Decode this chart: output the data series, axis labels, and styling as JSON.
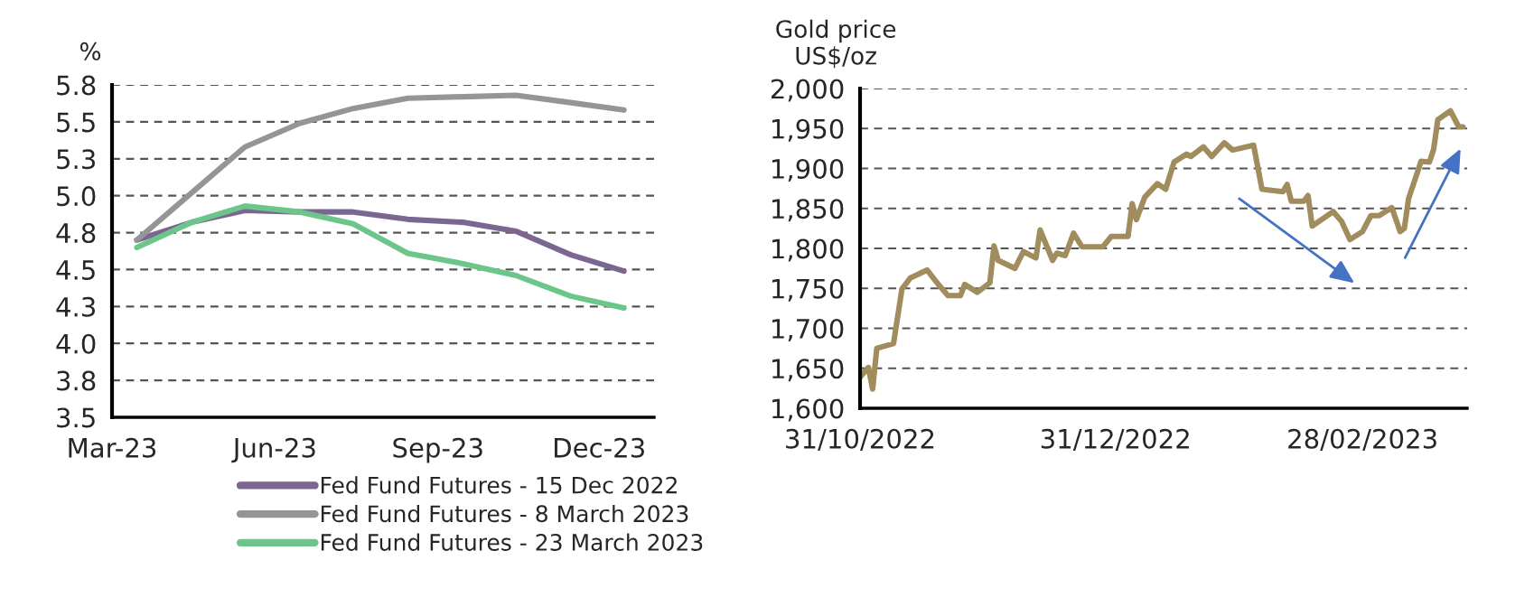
{
  "chart_data": [
    {
      "type": "line",
      "ylabel": "%",
      "x": [
        "2023-03-15",
        "2023-04-15",
        "2023-05-15",
        "2023-06-15",
        "2023-07-15",
        "2023-08-15",
        "2023-09-15",
        "2023-10-15",
        "2023-11-15",
        "2023-12-15"
      ],
      "series": [
        {
          "name": "Fed Fund Futures - 15 Dec 2022",
          "color": "#7a6690",
          "values": [
            4.7,
            4.82,
            4.9,
            4.89,
            4.89,
            4.84,
            4.82,
            4.76,
            4.6,
            4.49
          ]
        },
        {
          "name": "Fed Fund Futures - 8 March 2023",
          "color": "#959595",
          "values": [
            4.7,
            5.02,
            5.33,
            5.49,
            5.59,
            5.66,
            5.67,
            5.68,
            5.63,
            5.58
          ]
        },
        {
          "name": "Fed Fund Futures - 23 March 2023",
          "color": "#6cc68a",
          "values": [
            4.65,
            4.82,
            4.93,
            4.89,
            4.81,
            4.61,
            4.54,
            4.46,
            4.32,
            4.24
          ]
        }
      ],
      "xlim": [
        "2023-03-01",
        "2024-01-01"
      ],
      "xticks": [
        {
          "value": "2023-03-01",
          "label": "Mar-23"
        },
        {
          "value": "2023-06-01",
          "label": "Jun-23"
        },
        {
          "value": "2023-09-01",
          "label": "Sep-23"
        },
        {
          "value": "2023-12-01",
          "label": "Dec-23"
        }
      ],
      "ylim": [
        3.5,
        5.75
      ],
      "yticks": [
        {
          "value": 3.5,
          "label": "3.5"
        },
        {
          "value": 3.75,
          "label": "3.8"
        },
        {
          "value": 4.0,
          "label": "4.0"
        },
        {
          "value": 4.25,
          "label": "4.3"
        },
        {
          "value": 4.5,
          "label": "4.5"
        },
        {
          "value": 4.75,
          "label": "4.8"
        },
        {
          "value": 5.0,
          "label": "5.0"
        },
        {
          "value": 5.25,
          "label": "5.3"
        },
        {
          "value": 5.5,
          "label": "5.5"
        },
        {
          "value": 5.75,
          "label": "5.8"
        }
      ],
      "grid": "y",
      "legend": "bottom"
    },
    {
      "type": "line",
      "ylabel": "Gold price\nUS$/oz",
      "x": [
        "2022-10-31",
        "2022-11-02",
        "2022-11-03",
        "2022-11-04",
        "2022-11-08",
        "2022-11-10",
        "2022-11-12",
        "2022-11-16",
        "2022-11-19",
        "2022-11-21",
        "2022-11-24",
        "2022-11-25",
        "2022-11-28",
        "2022-12-01",
        "2022-12-02",
        "2022-12-03",
        "2022-12-07",
        "2022-12-09",
        "2022-12-12",
        "2022-12-13",
        "2022-12-16",
        "2022-12-17",
        "2022-12-19",
        "2022-12-21",
        "2022-12-23",
        "2022-12-28",
        "2022-12-30",
        "2023-01-03",
        "2023-01-04",
        "2023-01-05",
        "2023-01-07",
        "2023-01-10",
        "2023-01-12",
        "2023-01-14",
        "2023-01-17",
        "2023-01-18",
        "2023-01-21",
        "2023-01-23",
        "2023-01-26",
        "2023-01-28",
        "2023-02-02",
        "2023-02-04",
        "2023-02-09",
        "2023-02-10",
        "2023-02-11",
        "2023-02-14",
        "2023-02-15",
        "2023-02-16",
        "2023-02-21",
        "2023-02-23",
        "2023-02-25",
        "2023-02-28",
        "2023-03-02",
        "2023-03-04",
        "2023-03-07",
        "2023-03-09",
        "2023-03-10",
        "2023-03-11",
        "2023-03-14",
        "2023-03-16",
        "2023-03-17",
        "2023-03-18",
        "2023-03-21",
        "2023-03-23",
        "2023-03-24"
      ],
      "series": [
        {
          "color": "#a08c5c",
          "values": [
            1639,
            1651,
            1624,
            1675,
            1681,
            1749,
            1763,
            1773,
            1753,
            1741,
            1741,
            1755,
            1745,
            1757,
            1803,
            1785,
            1775,
            1796,
            1788,
            1823,
            1785,
            1794,
            1791,
            1819,
            1802,
            1802,
            1815,
            1815,
            1856,
            1836,
            1864,
            1881,
            1874,
            1908,
            1918,
            1915,
            1927,
            1915,
            1932,
            1923,
            1929,
            1874,
            1871,
            1880,
            1859,
            1859,
            1866,
            1828,
            1846,
            1834,
            1811,
            1821,
            1841,
            1841,
            1851,
            1821,
            1825,
            1862,
            1909,
            1908,
            1924,
            1961,
            1972,
            1952,
            1952
          ]
        }
      ],
      "xlim": [
        "2022-10-31",
        "2023-03-25"
      ],
      "xticks": [
        {
          "value": "2022-10-31",
          "label": "31/10/2022"
        },
        {
          "value": "2022-12-31",
          "label": "31/12/2022"
        },
        {
          "value": "2023-02-28",
          "label": "28/02/2023"
        }
      ],
      "ylim": [
        1600,
        2000
      ],
      "yticks": [
        {
          "value": 1600,
          "label": "1,600"
        },
        {
          "value": 1650,
          "label": "1,650"
        },
        {
          "value": 1700,
          "label": "1,700"
        },
        {
          "value": 1750,
          "label": "1,750"
        },
        {
          "value": 1800,
          "label": "1,800"
        },
        {
          "value": 1850,
          "label": "1,850"
        },
        {
          "value": 1900,
          "label": "1,900"
        },
        {
          "value": 1950,
          "label": "1,950"
        },
        {
          "value": 2000,
          "label": "2,000"
        }
      ],
      "grid": "y"
    }
  ]
}
